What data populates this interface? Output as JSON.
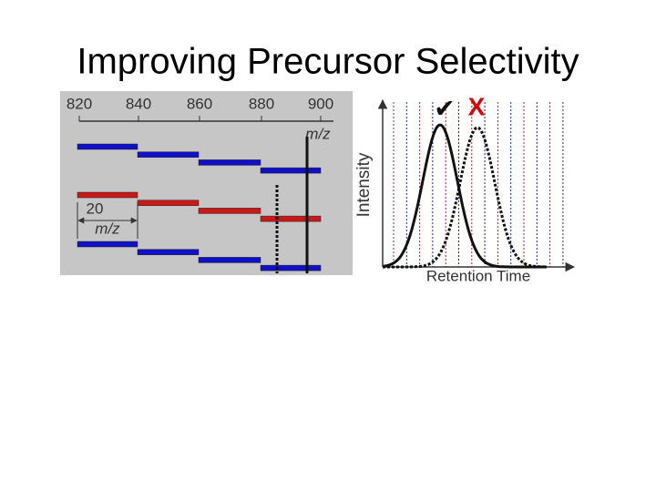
{
  "title": "Improving Precursor Selectivity",
  "left_panel": {
    "ticks": [
      "820",
      "840",
      "860",
      "880",
      "900"
    ],
    "axis_label": "m/z",
    "window_width": "20",
    "window_unit": "m/z"
  },
  "right_panel": {
    "y_label": "Intensity",
    "x_label": "Retention Time",
    "check": "✔",
    "cross": "X"
  }
}
